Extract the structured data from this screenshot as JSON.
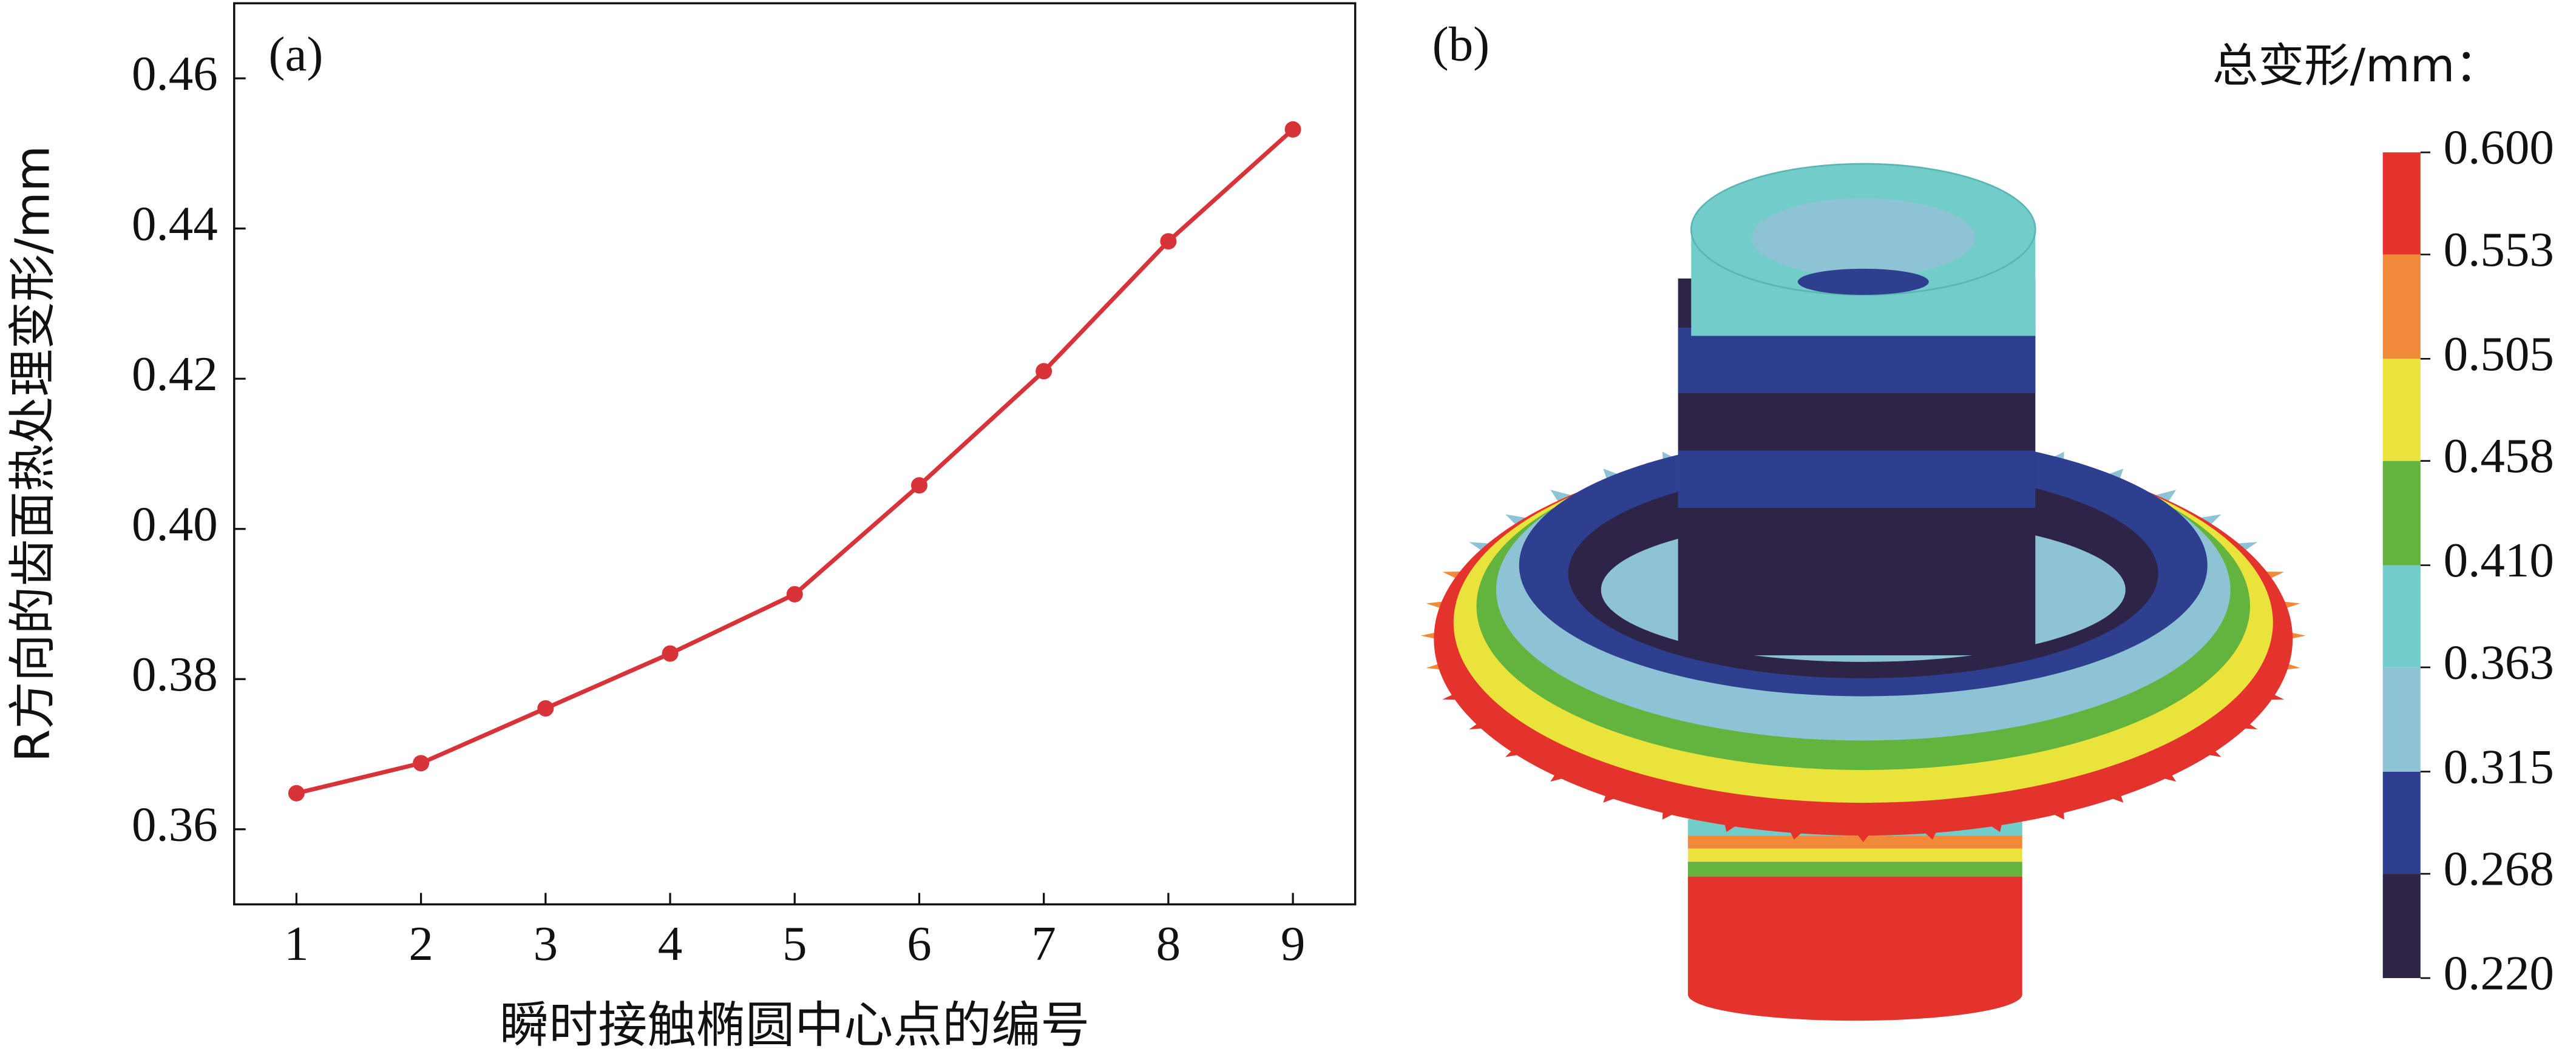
{
  "chart_data": [
    {
      "type": "line",
      "panel_label": "(a)",
      "xlabel": "瞬时接触椭圆中心点的编号",
      "ylabel": "R方向的齿面热处理变形/mm",
      "x": [
        1,
        2,
        3,
        4,
        5,
        6,
        7,
        8,
        9
      ],
      "series": [
        {
          "color": "#d9333a",
          "values": [
            0.3648,
            0.3688,
            0.3761,
            0.3834,
            0.3913,
            0.4058,
            0.421,
            0.4383,
            0.4532
          ]
        }
      ],
      "xlim": [
        0.5,
        9.5
      ],
      "xticks": [
        1,
        2,
        3,
        4,
        5,
        6,
        7,
        8,
        9
      ],
      "ylim": [
        0.35,
        0.47
      ],
      "yticks": [
        0.36,
        0.38,
        {
          "value": 0.4,
          "label": "0.40"
        },
        0.42,
        0.44,
        0.46
      ]
    },
    {
      "type": "contour",
      "panel_label": "(b)",
      "colorbar_title": "总变形/mm：",
      "colorbar_lim": [
        0.22,
        0.6
      ],
      "colorbar_ticks": [
        {
          "value": 0.22,
          "label": "0.220"
        },
        {
          "value": 0.268,
          "label": "0.268"
        },
        {
          "value": 0.315,
          "label": "0.315"
        },
        {
          "value": 0.363,
          "label": "0.363"
        },
        {
          "value": 0.41,
          "label": "0.410"
        },
        {
          "value": 0.458,
          "label": "0.458"
        },
        {
          "value": 0.505,
          "label": "0.505"
        },
        {
          "value": 0.553,
          "label": "0.553"
        },
        {
          "value": 0.6,
          "label": "0.600"
        }
      ],
      "colors": [
        "#2e2448",
        "#2f3f90",
        "#8ec3d6",
        "#72cdc9",
        "#63b43f",
        "#e9e33c",
        "#f1893a",
        "#e3332c"
      ]
    }
  ]
}
